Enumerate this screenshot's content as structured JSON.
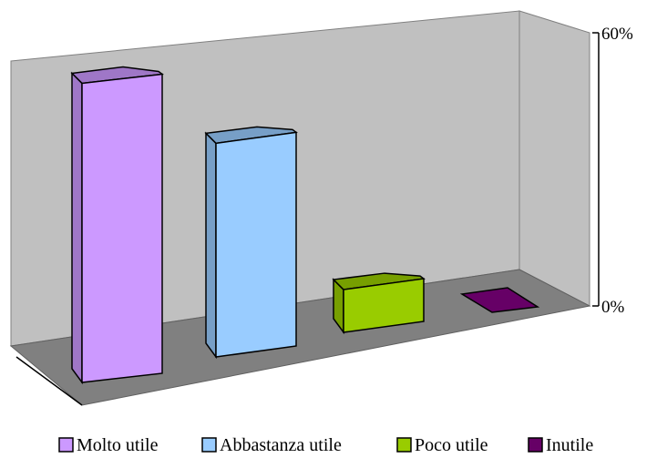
{
  "chart_data": {
    "type": "bar",
    "title": "",
    "xlabel": "",
    "ylabel": "",
    "categories": [
      "Molto utile",
      "Abbastanza utile",
      "Poco utile",
      "Inutile"
    ],
    "series": [
      {
        "values": [
          56,
          40,
          8,
          0.5
        ],
        "colors": [
          "#cc99ff",
          "#99ccff",
          "#99cc00",
          "#660066"
        ]
      }
    ],
    "ylim": [
      0,
      60
    ],
    "yticks": [
      "0%",
      "60%"
    ],
    "grid": false,
    "three_d": true,
    "legend": {
      "position": "bottom",
      "entries": [
        "Molto utile",
        "Abbastanza utile",
        "Poco utile",
        "Inutile"
      ]
    }
  }
}
